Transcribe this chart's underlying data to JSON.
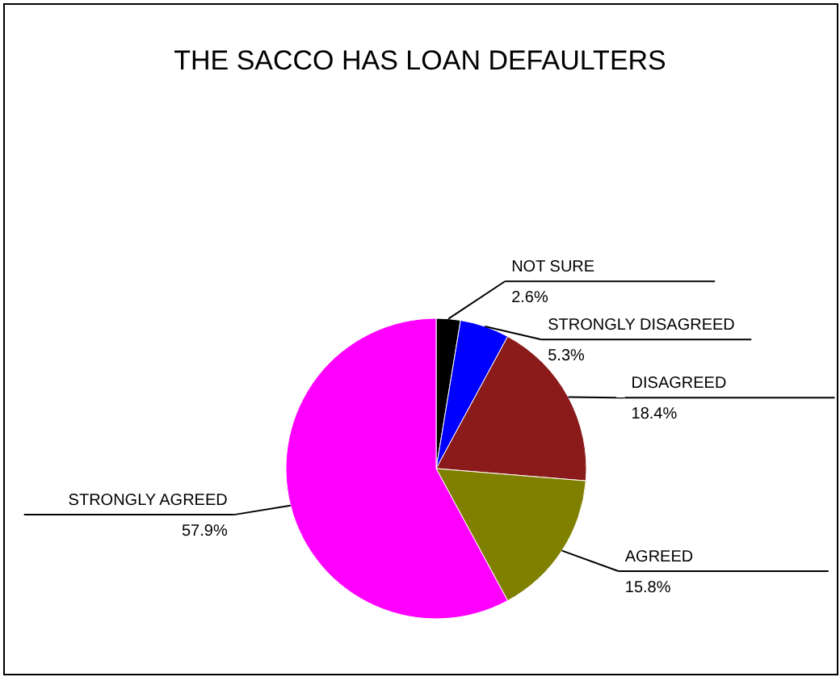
{
  "chart_data": {
    "type": "pie",
    "title": "THE SACCO HAS LOAN DEFAULTERS",
    "categories": [
      "NOT SURE",
      "STRONGLY DISAGREED",
      "DISAGREED",
      "AGREED",
      "STRONGLY AGREED"
    ],
    "values": [
      2.6,
      5.3,
      18.4,
      15.8,
      57.9
    ],
    "colors": [
      "#000000",
      "#0000ff",
      "#8b1a1a",
      "#808000",
      "#ff00ff"
    ],
    "value_labels": [
      "2.6%",
      "5.3%",
      "18.4%",
      "15.8%",
      "57.9%"
    ]
  }
}
